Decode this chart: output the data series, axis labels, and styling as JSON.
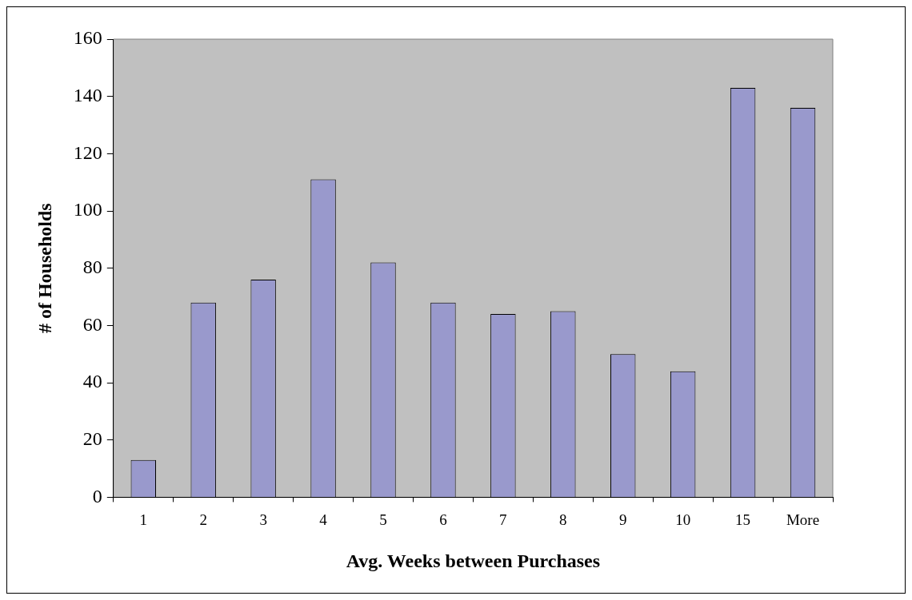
{
  "chart_data": {
    "type": "bar",
    "xlabel": "Avg. Weeks between Purchases",
    "ylabel": "# of Households",
    "categories": [
      "1",
      "2",
      "3",
      "4",
      "5",
      "6",
      "7",
      "8",
      "9",
      "10",
      "15",
      "More"
    ],
    "values": [
      13,
      68,
      76,
      111,
      82,
      68,
      64,
      65,
      50,
      44,
      143,
      136
    ],
    "color": "#9999cc",
    "ylim": [
      0,
      160
    ],
    "yticks": [
      0,
      20,
      40,
      60,
      80,
      100,
      120,
      140,
      160
    ],
    "grid": false,
    "legend": false
  }
}
